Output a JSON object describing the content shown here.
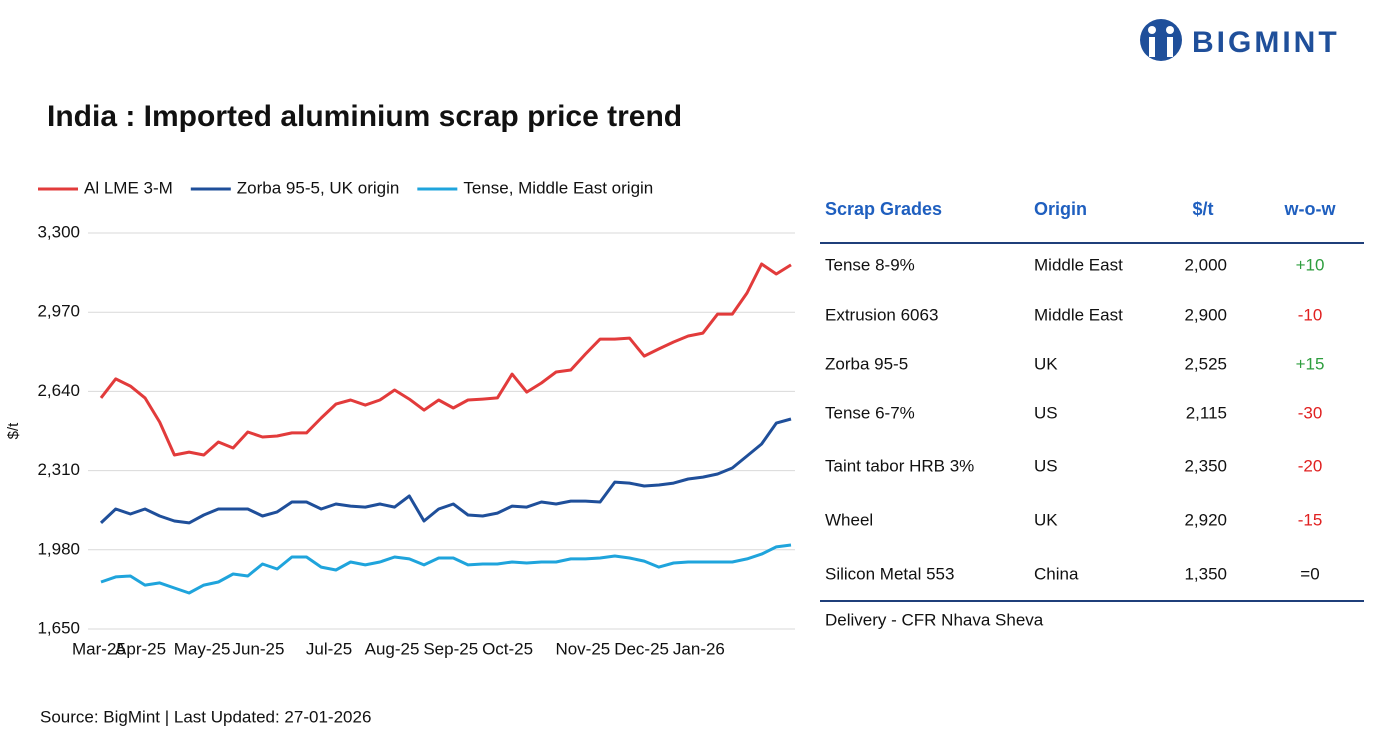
{
  "brand": "BIGMINT",
  "chart_data": {
    "type": "line",
    "title": "India : Imported aluminium scrap price trend",
    "y_label": "$/t",
    "categories": [
      "Mar-25",
      null,
      null,
      "Apr-25",
      null,
      null,
      null,
      "May-25",
      null,
      null,
      null,
      "Jun-25",
      null,
      null,
      null,
      null,
      "Jul-25",
      null,
      null,
      null,
      "Aug-25",
      null,
      null,
      null,
      "Sep-25",
      null,
      null,
      null,
      "Oct-25",
      null,
      null,
      null,
      null,
      "Nov-25",
      null,
      null,
      null,
      "Dec-25",
      null,
      null,
      null,
      "Jan-26",
      null,
      null,
      null,
      null,
      null,
      null
    ],
    "ylim": [
      1650,
      3300
    ],
    "yticks": [
      {
        "value": 1650,
        "label": "1,650"
      },
      {
        "value": 1980,
        "label": "1,980"
      },
      {
        "value": 2310,
        "label": "2,310"
      },
      {
        "value": 2640,
        "label": "2,640"
      },
      {
        "value": 2970,
        "label": "2,970"
      },
      {
        "value": 3300,
        "label": "3,300"
      }
    ],
    "grid": true,
    "legend": "top",
    "series": [
      {
        "name": "Al LME 3-M",
        "color": "#e23b3b",
        "values": [
          2613,
          2692,
          2662,
          2613,
          2512,
          2375,
          2387,
          2375,
          2429,
          2404,
          2471,
          2450,
          2454,
          2467,
          2467,
          2529,
          2587,
          2604,
          2583,
          2604,
          2646,
          2608,
          2562,
          2604,
          2571,
          2604,
          2608,
          2613,
          2712,
          2637,
          2675,
          2721,
          2729,
          2796,
          2858,
          2858,
          2862,
          2787,
          2817,
          2846,
          2871,
          2883,
          2962,
          2962,
          3050,
          3171,
          3129,
          3167
        ]
      },
      {
        "name": "Zorba 95-5, UK origin",
        "color": "#1f4f9a",
        "values": [
          2092,
          2150,
          2129,
          2150,
          2121,
          2100,
          2092,
          2125,
          2150,
          2150,
          2150,
          2121,
          2138,
          2179,
          2179,
          2150,
          2171,
          2162,
          2158,
          2171,
          2158,
          2204,
          2100,
          2150,
          2171,
          2125,
          2121,
          2133,
          2162,
          2158,
          2179,
          2171,
          2183,
          2183,
          2179,
          2262,
          2258,
          2246,
          2250,
          2258,
          2275,
          2283,
          2296,
          2321,
          2371,
          2421,
          2508,
          2525
        ]
      },
      {
        "name": "Tense, Middle East origin",
        "color": "#1fa4dc",
        "values": [
          1846,
          1867,
          1871,
          1833,
          1842,
          1821,
          1800,
          1833,
          1846,
          1879,
          1871,
          1921,
          1900,
          1950,
          1950,
          1908,
          1896,
          1929,
          1917,
          1929,
          1950,
          1942,
          1917,
          1946,
          1946,
          1917,
          1921,
          1921,
          1929,
          1925,
          1929,
          1929,
          1942,
          1942,
          1946,
          1954,
          1946,
          1933,
          1908,
          1925,
          1929,
          1929,
          1929,
          1929,
          1942,
          1962,
          1992,
          2000
        ]
      }
    ]
  },
  "table": {
    "header": [
      "Scrap Grades",
      "Origin",
      "$/t",
      "w-o-w"
    ],
    "rows": [
      [
        "Tense 8-9%",
        "Middle East",
        "2,000",
        "+10"
      ],
      [
        "Extrusion 6063",
        "Middle East",
        "2,900",
        "-10"
      ],
      [
        "Zorba 95-5",
        "UK",
        "2,525",
        "+15"
      ],
      [
        "Tense 6-7%",
        "US",
        "2,115",
        "-30"
      ],
      [
        "Taint tabor HRB 3%",
        "US",
        "2,350",
        "-20"
      ],
      [
        "Wheel",
        "UK",
        "2,920",
        "-15"
      ],
      [
        "Silicon Metal 553",
        "China",
        "1,350",
        "=0"
      ]
    ],
    "note": "Delivery - CFR Nhava Sheva"
  },
  "source": "Source: BigMint | Last Updated: 27-01-2026"
}
